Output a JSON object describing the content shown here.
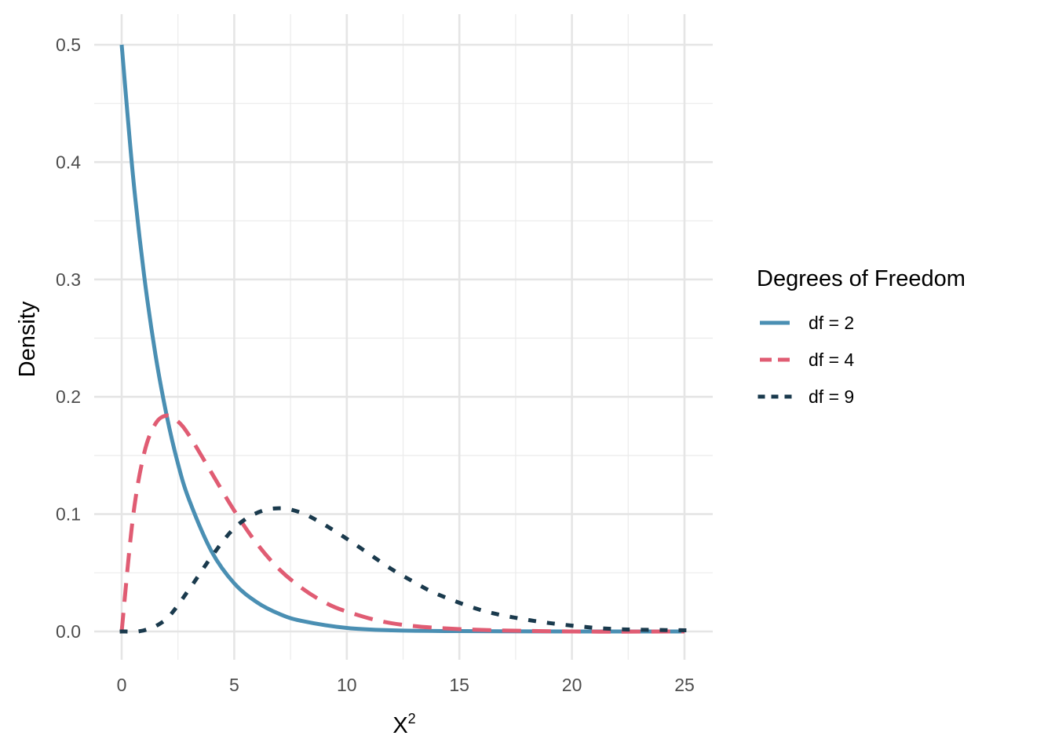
{
  "chart_data": {
    "type": "line",
    "xlabel": "X",
    "xlabel_superscript": "2",
    "ylabel": "Density",
    "xlim": [
      0,
      25
    ],
    "ylim": [
      0,
      0.5
    ],
    "x_ticks": [
      0,
      5,
      10,
      15,
      20,
      25
    ],
    "x_tick_labels": [
      "0",
      "5",
      "10",
      "15",
      "20",
      "25"
    ],
    "y_ticks": [
      0,
      0.1,
      0.2,
      0.3,
      0.4,
      0.5
    ],
    "y_tick_labels": [
      "0.0",
      "0.1",
      "0.2",
      "0.3",
      "0.4",
      "0.5"
    ],
    "grid": true,
    "legend": {
      "title": "Degrees of Freedom",
      "placement": "right"
    },
    "series": [
      {
        "name": "df = 2",
        "color": "#4a8fb3",
        "linetype": "solid",
        "x": [
          0,
          0.5,
          1,
          1.5,
          2,
          2.5,
          3,
          4,
          5,
          6,
          7,
          8,
          10,
          12,
          15,
          20,
          25
        ],
        "y": [
          0.5,
          0.389,
          0.303,
          0.236,
          0.184,
          0.143,
          0.112,
          0.068,
          0.041,
          0.025,
          0.015,
          0.009,
          0.003,
          0.001,
          0.0003,
          0.0,
          0.0
        ]
      },
      {
        "name": "df = 4",
        "color": "#e05c73",
        "linetype": "dashed",
        "x": [
          0,
          0.5,
          1,
          1.5,
          2,
          2.5,
          3,
          4,
          5,
          6,
          7,
          8,
          9,
          10,
          12,
          15,
          20,
          25
        ],
        "y": [
          0,
          0.097,
          0.152,
          0.177,
          0.184,
          0.179,
          0.167,
          0.135,
          0.103,
          0.075,
          0.053,
          0.037,
          0.025,
          0.017,
          0.007,
          0.002,
          0.0,
          0.0
        ]
      },
      {
        "name": "df = 9",
        "color": "#1a3a4d",
        "linetype": "dotted",
        "x": [
          0,
          1,
          2,
          3,
          4,
          5,
          6,
          7,
          8,
          9,
          10,
          11,
          12,
          13,
          14,
          16,
          18,
          20,
          22,
          25
        ],
        "y": [
          0,
          0.001,
          0.011,
          0.036,
          0.064,
          0.088,
          0.101,
          0.105,
          0.101,
          0.091,
          0.079,
          0.066,
          0.053,
          0.042,
          0.032,
          0.018,
          0.01,
          0.005,
          0.002,
          0.001
        ]
      }
    ]
  }
}
